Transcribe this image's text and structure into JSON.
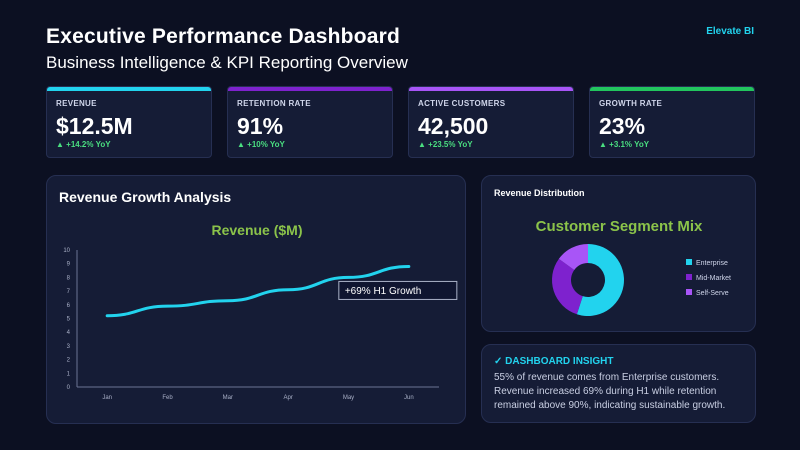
{
  "header": {
    "title": "Executive Performance Dashboard",
    "subtitle": "Business Intelligence & KPI Reporting Overview",
    "brand": "Elevate BI"
  },
  "kpis": [
    {
      "label": "REVENUE",
      "value": "$12.5M",
      "delta": "▲ +14.2% YoY",
      "color": "#22d3ee"
    },
    {
      "label": "RETENTION RATE",
      "value": "91%",
      "delta": "▲ +10% YoY",
      "color": "#7e22ce"
    },
    {
      "label": "ACTIVE CUSTOMERS",
      "value": "42,500",
      "delta": "▲ +23.5% YoY",
      "color": "#a855f7"
    },
    {
      "label": "GROWTH RATE",
      "value": "23%",
      "delta": "▲ +3.1% YoY",
      "color": "#22c55e"
    }
  ],
  "revenue_panel": {
    "title": "Revenue Growth Analysis"
  },
  "distribution_panel": {
    "title": "Revenue Distribution"
  },
  "insight": {
    "heading": "✓ DASHBOARD INSIGHT",
    "lines": [
      "55% of revenue comes from Enterprise customers.",
      "Revenue increased 69% during H1 while retention",
      "remained above 90%, indicating sustainable growth."
    ]
  },
  "chart_data": [
    {
      "type": "line",
      "title": "Revenue ($M)",
      "categories": [
        "Jan",
        "Feb",
        "Mar",
        "Apr",
        "May",
        "Jun"
      ],
      "series": [
        {
          "name": "",
          "values": [
            5.2,
            5.9,
            6.3,
            7.1,
            8.0,
            8.8
          ],
          "color": "#22d3ee"
        }
      ],
      "ylim": [
        0,
        10
      ],
      "yticks": [
        "0",
        "1",
        "2",
        "3",
        "4",
        "5",
        "6",
        "7",
        "8",
        "9",
        "10"
      ],
      "annotation": "+69% H1 Growth",
      "grid": false
    },
    {
      "type": "pie",
      "title": "Customer Segment Mix",
      "labels": [
        "Enterprise",
        "Mid-Market",
        "Self-Serve"
      ],
      "values": [
        55,
        30,
        15
      ],
      "colors": [
        "#22d3ee",
        "#7e22ce",
        "#a855f7"
      ],
      "legend": "right"
    }
  ]
}
